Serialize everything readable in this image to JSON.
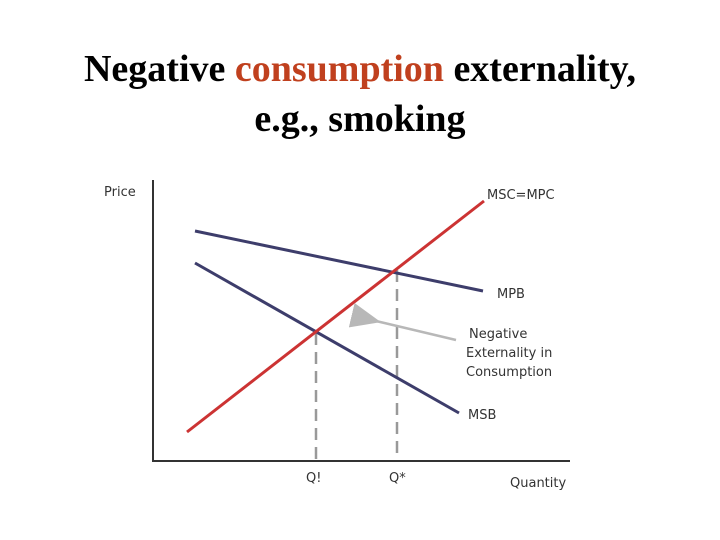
{
  "title": {
    "part1": "Negative ",
    "accent": "consumption",
    "part2": " externality,",
    "line2": "e.g., smoking"
  },
  "colors": {
    "accent": "#c0401e",
    "supply_line": "#cc3333",
    "demand_lines": "#3d3d6b",
    "arrow": "#b8b8b8",
    "dashes": "#999999",
    "axes": "#333333"
  },
  "diagram": {
    "y_axis_label": "Price",
    "x_axis_label": "Quantity",
    "curves": {
      "supply_label": "MSC=MPC",
      "private_benefit_label": "MPB",
      "social_benefit_label": "MSB"
    },
    "annotation": {
      "line1": "Negative",
      "line2": "Externality in",
      "line3": "Consumption"
    },
    "quantity_marks": {
      "q1": "Q!",
      "q2": "Q*"
    }
  }
}
